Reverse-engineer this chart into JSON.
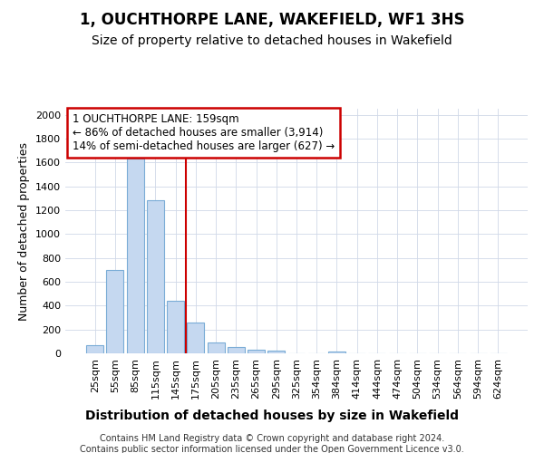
{
  "title": "1, OUCHTHORPE LANE, WAKEFIELD, WF1 3HS",
  "subtitle": "Size of property relative to detached houses in Wakefield",
  "xlabel": "Distribution of detached houses by size in Wakefield",
  "ylabel": "Number of detached properties",
  "footer_line1": "Contains HM Land Registry data © Crown copyright and database right 2024.",
  "footer_line2": "Contains public sector information licensed under the Open Government Licence v3.0.",
  "categories": [
    "25sqm",
    "55sqm",
    "85sqm",
    "115sqm",
    "145sqm",
    "175sqm",
    "205sqm",
    "235sqm",
    "265sqm",
    "295sqm",
    "325sqm",
    "354sqm",
    "384sqm",
    "414sqm",
    "444sqm",
    "474sqm",
    "504sqm",
    "534sqm",
    "564sqm",
    "594sqm",
    "624sqm"
  ],
  "values": [
    65,
    700,
    1635,
    1285,
    440,
    255,
    90,
    50,
    30,
    25,
    0,
    0,
    15,
    0,
    0,
    0,
    0,
    0,
    0,
    0,
    0
  ],
  "bar_color": "#c5d8f0",
  "bar_edge_color": "#7aacd6",
  "vline_color": "#cc0000",
  "annotation_text": "1 OUCHTHORPE LANE: 159sqm\n← 86% of detached houses are smaller (3,914)\n14% of semi-detached houses are larger (627) →",
  "annotation_box_color": "white",
  "annotation_box_edge_color": "#cc0000",
  "ylim": [
    0,
    2050
  ],
  "yticks": [
    0,
    200,
    400,
    600,
    800,
    1000,
    1200,
    1400,
    1600,
    1800,
    2000
  ],
  "bg_color": "#ffffff",
  "plot_bg_color": "#ffffff",
  "grid_color": "#d0d8e8",
  "title_fontsize": 12,
  "subtitle_fontsize": 10,
  "ylabel_fontsize": 9,
  "xlabel_fontsize": 10,
  "tick_fontsize": 8,
  "footer_fontsize": 7,
  "annot_fontsize": 8.5,
  "vline_x_index": 4.5
}
